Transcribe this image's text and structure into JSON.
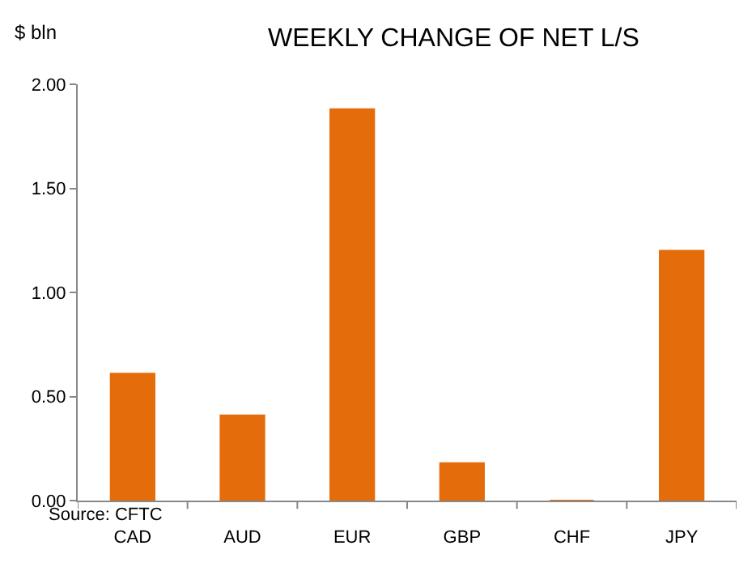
{
  "chart_data": {
    "type": "bar",
    "title": "WEEKLY CHANGE OF NET L/S",
    "ylabel": "$ bln",
    "categories": [
      "CAD",
      "AUD",
      "EUR",
      "GBP",
      "CHF",
      "JPY"
    ],
    "values": [
      0.61,
      0.41,
      1.88,
      0.18,
      0,
      1.2
    ],
    "color": "#e46c0a",
    "ylim": [
      0,
      2
    ],
    "yticks": [
      {
        "value": 0,
        "label": "0.00"
      },
      {
        "value": 0.5,
        "label": "0.50"
      },
      {
        "value": 1,
        "label": "1.00"
      },
      {
        "value": 1.5,
        "label": "1.50"
      },
      {
        "value": 2,
        "label": "2.00"
      }
    ],
    "legend": false,
    "annotations": [
      "Source: CFTC"
    ]
  }
}
